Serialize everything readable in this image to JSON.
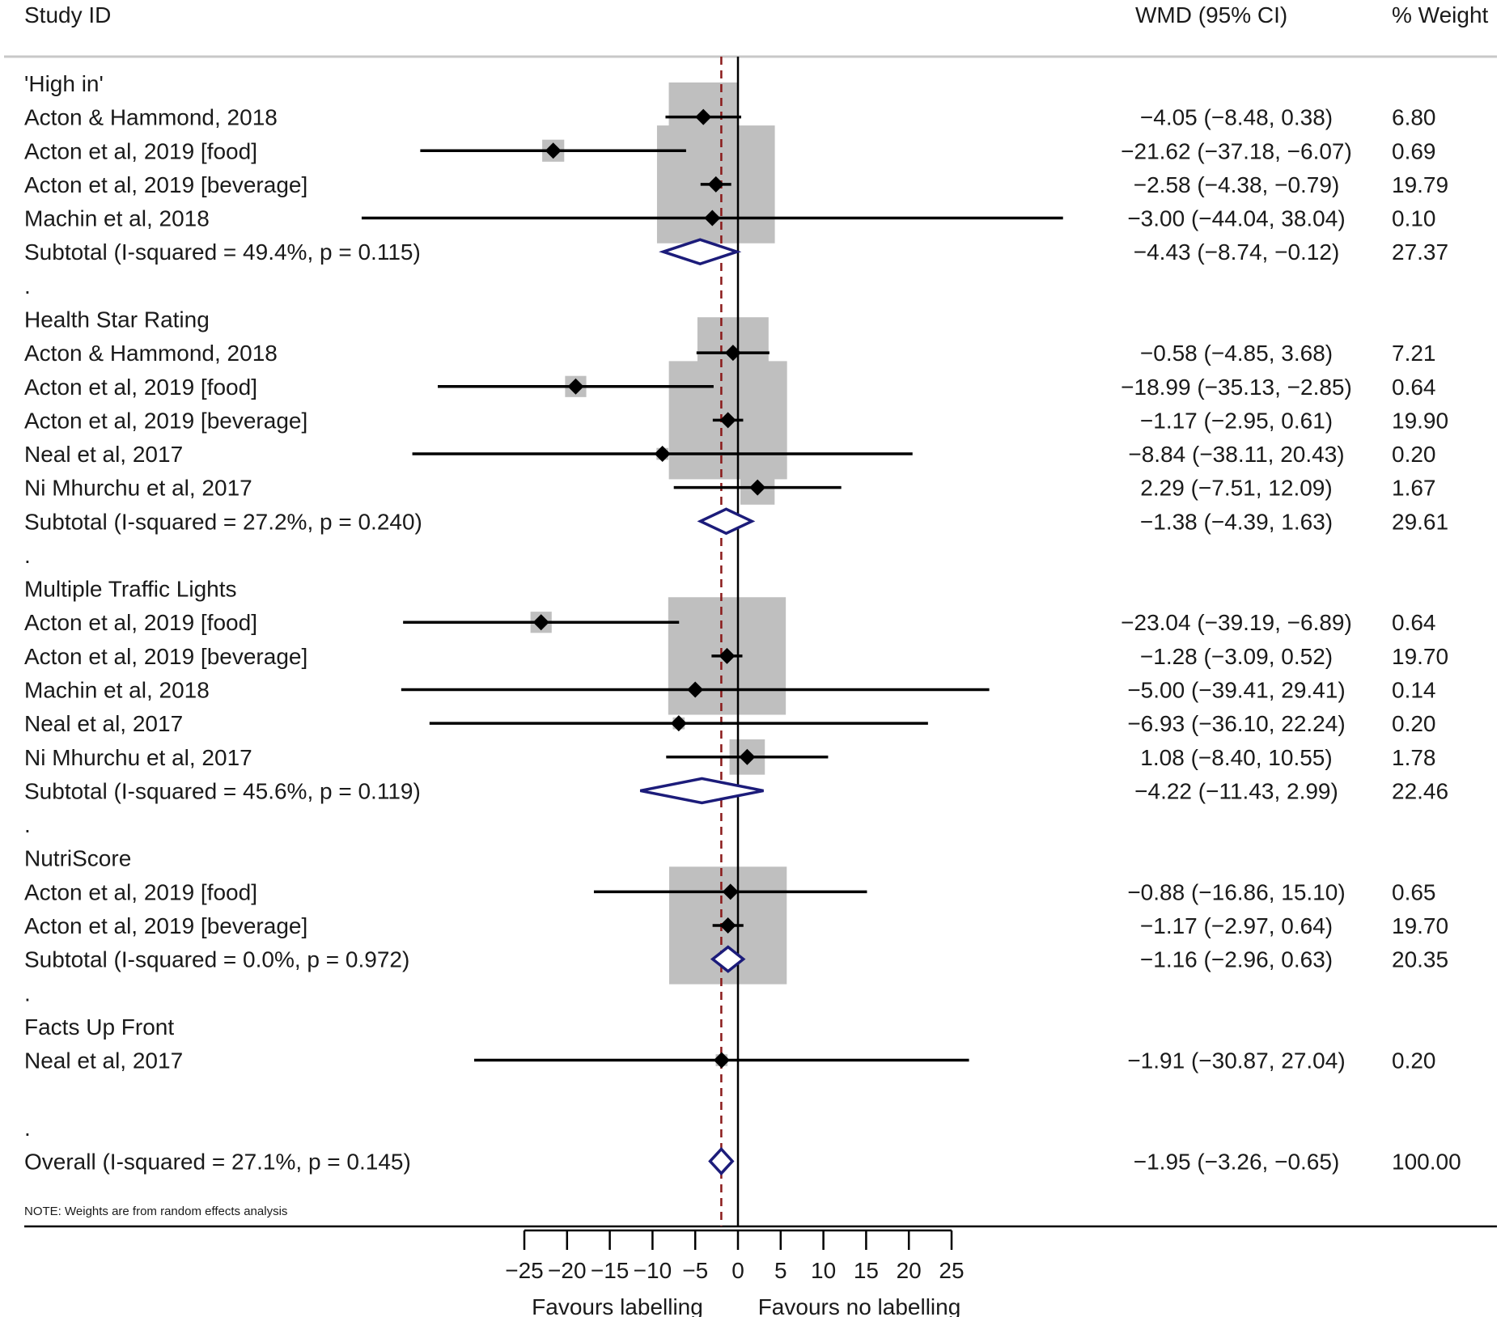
{
  "chart_data": {
    "type": "forest",
    "columns": {
      "study": "Study ID",
      "effect": "WMD (95% CI)",
      "weight": "% Weight"
    },
    "x_ticks": [
      -25,
      -20,
      -15,
      -10,
      -5,
      0,
      5,
      10,
      15,
      20,
      25
    ],
    "x_tick_labels": [
      "−25",
      "−20",
      "−15",
      "−10",
      "−5",
      "0",
      "5",
      "10",
      "15",
      "20",
      "25"
    ],
    "x_labels": {
      "left": "Favours labelling",
      "right": "Favours no labelling"
    },
    "null_line": 0,
    "overall_line": -1.95,
    "note": "NOTE: Weights are from random effects analysis",
    "colors": {
      "point": "#000000",
      "box": "#bfbfbf",
      "diamond": "#1c1c7a",
      "reference": "#8b1a1a"
    },
    "rows": [
      {
        "type": "group",
        "label": "'High in'"
      },
      {
        "type": "study",
        "label": "Acton & Hammond, 2018",
        "est": -4.05,
        "lo": -8.48,
        "hi": 0.38,
        "ci_text": "−4.05 (−8.48, 0.38)",
        "weight": 6.8,
        "weight_text": "6.80"
      },
      {
        "type": "study",
        "label": "Acton et al, 2019 [food]",
        "est": -21.62,
        "lo": -37.18,
        "hi": -6.07,
        "ci_text": "−21.62 (−37.18, −6.07)",
        "weight": 0.69,
        "weight_text": "0.69"
      },
      {
        "type": "study",
        "label": "Acton et al, 2019 [beverage]",
        "est": -2.58,
        "lo": -4.38,
        "hi": -0.79,
        "ci_text": "−2.58 (−4.38, −0.79)",
        "weight": 19.79,
        "weight_text": "19.79"
      },
      {
        "type": "study",
        "label": "Machin et al, 2018",
        "est": -3.0,
        "lo": -44.04,
        "hi": 38.04,
        "ci_text": "−3.00 (−44.04, 38.04)",
        "weight": 0.1,
        "weight_text": "0.10"
      },
      {
        "type": "subtotal",
        "label": "Subtotal  (I-squared = 49.4%, p = 0.115)",
        "est": -4.43,
        "lo": -8.74,
        "hi": -0.12,
        "ci_text": "−4.43 (−8.74, −0.12)",
        "weight": 27.37,
        "weight_text": "27.37"
      },
      {
        "type": "spacer",
        "label": "."
      },
      {
        "type": "group",
        "label": "Health Star Rating"
      },
      {
        "type": "study",
        "label": "Acton & Hammond, 2018",
        "est": -0.58,
        "lo": -4.85,
        "hi": 3.68,
        "ci_text": "−0.58 (−4.85, 3.68)",
        "weight": 7.21,
        "weight_text": "7.21"
      },
      {
        "type": "study",
        "label": "Acton et al, 2019 [food]",
        "est": -18.99,
        "lo": -35.13,
        "hi": -2.85,
        "ci_text": "−18.99 (−35.13, −2.85)",
        "weight": 0.64,
        "weight_text": "0.64"
      },
      {
        "type": "study",
        "label": "Acton et al, 2019 [beverage]",
        "est": -1.17,
        "lo": -2.95,
        "hi": 0.61,
        "ci_text": "−1.17 (−2.95, 0.61)",
        "weight": 19.9,
        "weight_text": "19.90"
      },
      {
        "type": "study",
        "label": "Neal et al, 2017",
        "est": -8.84,
        "lo": -38.11,
        "hi": 20.43,
        "ci_text": "−8.84 (−38.11, 20.43)",
        "weight": 0.2,
        "weight_text": "0.20"
      },
      {
        "type": "study",
        "label": "Ni Mhurchu et al, 2017",
        "est": 2.29,
        "lo": -7.51,
        "hi": 12.09,
        "ci_text": "2.29 (−7.51, 12.09)",
        "weight": 1.67,
        "weight_text": "1.67"
      },
      {
        "type": "subtotal",
        "label": "Subtotal  (I-squared = 27.2%, p = 0.240)",
        "est": -1.38,
        "lo": -4.39,
        "hi": 1.63,
        "ci_text": "−1.38 (−4.39, 1.63)",
        "weight": 29.61,
        "weight_text": "29.61"
      },
      {
        "type": "spacer",
        "label": "."
      },
      {
        "type": "group",
        "label": "Multiple Traffic Lights"
      },
      {
        "type": "study",
        "label": "Acton et al, 2019 [food]",
        "est": -23.04,
        "lo": -39.19,
        "hi": -6.89,
        "ci_text": "−23.04 (−39.19, −6.89)",
        "weight": 0.64,
        "weight_text": "0.64"
      },
      {
        "type": "study",
        "label": "Acton et al, 2019 [beverage]",
        "est": -1.28,
        "lo": -3.09,
        "hi": 0.52,
        "ci_text": "−1.28 (−3.09, 0.52)",
        "weight": 19.7,
        "weight_text": "19.70"
      },
      {
        "type": "study",
        "label": "Machin et al, 2018",
        "est": -5.0,
        "lo": -39.41,
        "hi": 29.41,
        "ci_text": "−5.00 (−39.41, 29.41)",
        "weight": 0.14,
        "weight_text": "0.14"
      },
      {
        "type": "study",
        "label": "Neal et al, 2017",
        "est": -6.93,
        "lo": -36.1,
        "hi": 22.24,
        "ci_text": "−6.93 (−36.10, 22.24)",
        "weight": 0.2,
        "weight_text": "0.20"
      },
      {
        "type": "study",
        "label": "Ni Mhurchu et al, 2017",
        "est": 1.08,
        "lo": -8.4,
        "hi": 10.55,
        "ci_text": "1.08 (−8.40, 10.55)",
        "weight": 1.78,
        "weight_text": "1.78"
      },
      {
        "type": "subtotal",
        "label": "Subtotal  (I-squared = 45.6%, p = 0.119)",
        "est": -4.22,
        "lo": -11.43,
        "hi": 2.99,
        "ci_text": "−4.22 (−11.43, 2.99)",
        "weight": 22.46,
        "weight_text": "22.46"
      },
      {
        "type": "spacer",
        "label": "."
      },
      {
        "type": "group",
        "label": "NutriScore"
      },
      {
        "type": "study",
        "label": "Acton et al, 2019 [food]",
        "est": -0.88,
        "lo": -16.86,
        "hi": 15.1,
        "ci_text": "−0.88 (−16.86, 15.10)",
        "weight": 0.65,
        "weight_text": "0.65"
      },
      {
        "type": "study",
        "label": "Acton et al, 2019 [beverage]",
        "est": -1.17,
        "lo": -2.97,
        "hi": 0.64,
        "ci_text": "−1.17 (−2.97, 0.64)",
        "weight": 19.7,
        "weight_text": "19.70"
      },
      {
        "type": "subtotal",
        "label": "Subtotal  (I-squared = 0.0%, p = 0.972)",
        "est": -1.16,
        "lo": -2.96,
        "hi": 0.63,
        "ci_text": "−1.16 (−2.96, 0.63)",
        "weight": 20.35,
        "weight_text": "20.35"
      },
      {
        "type": "spacer",
        "label": "."
      },
      {
        "type": "group",
        "label": "Facts Up Front"
      },
      {
        "type": "study",
        "label": "Neal et al, 2017",
        "est": -1.91,
        "lo": -30.87,
        "hi": 27.04,
        "ci_text": "−1.91 (−30.87, 27.04)",
        "weight": 0.2,
        "weight_text": "0.20"
      },
      {
        "type": "spacer",
        "label": ""
      },
      {
        "type": "spacer",
        "label": "."
      },
      {
        "type": "overall",
        "label": "Overall  (I-squared = 27.1%, p = 0.145)",
        "est": -1.95,
        "lo": -3.26,
        "hi": -0.65,
        "ci_text": "−1.95 (−3.26, −0.65)",
        "weight": 100.0,
        "weight_text": "100.00"
      }
    ]
  }
}
